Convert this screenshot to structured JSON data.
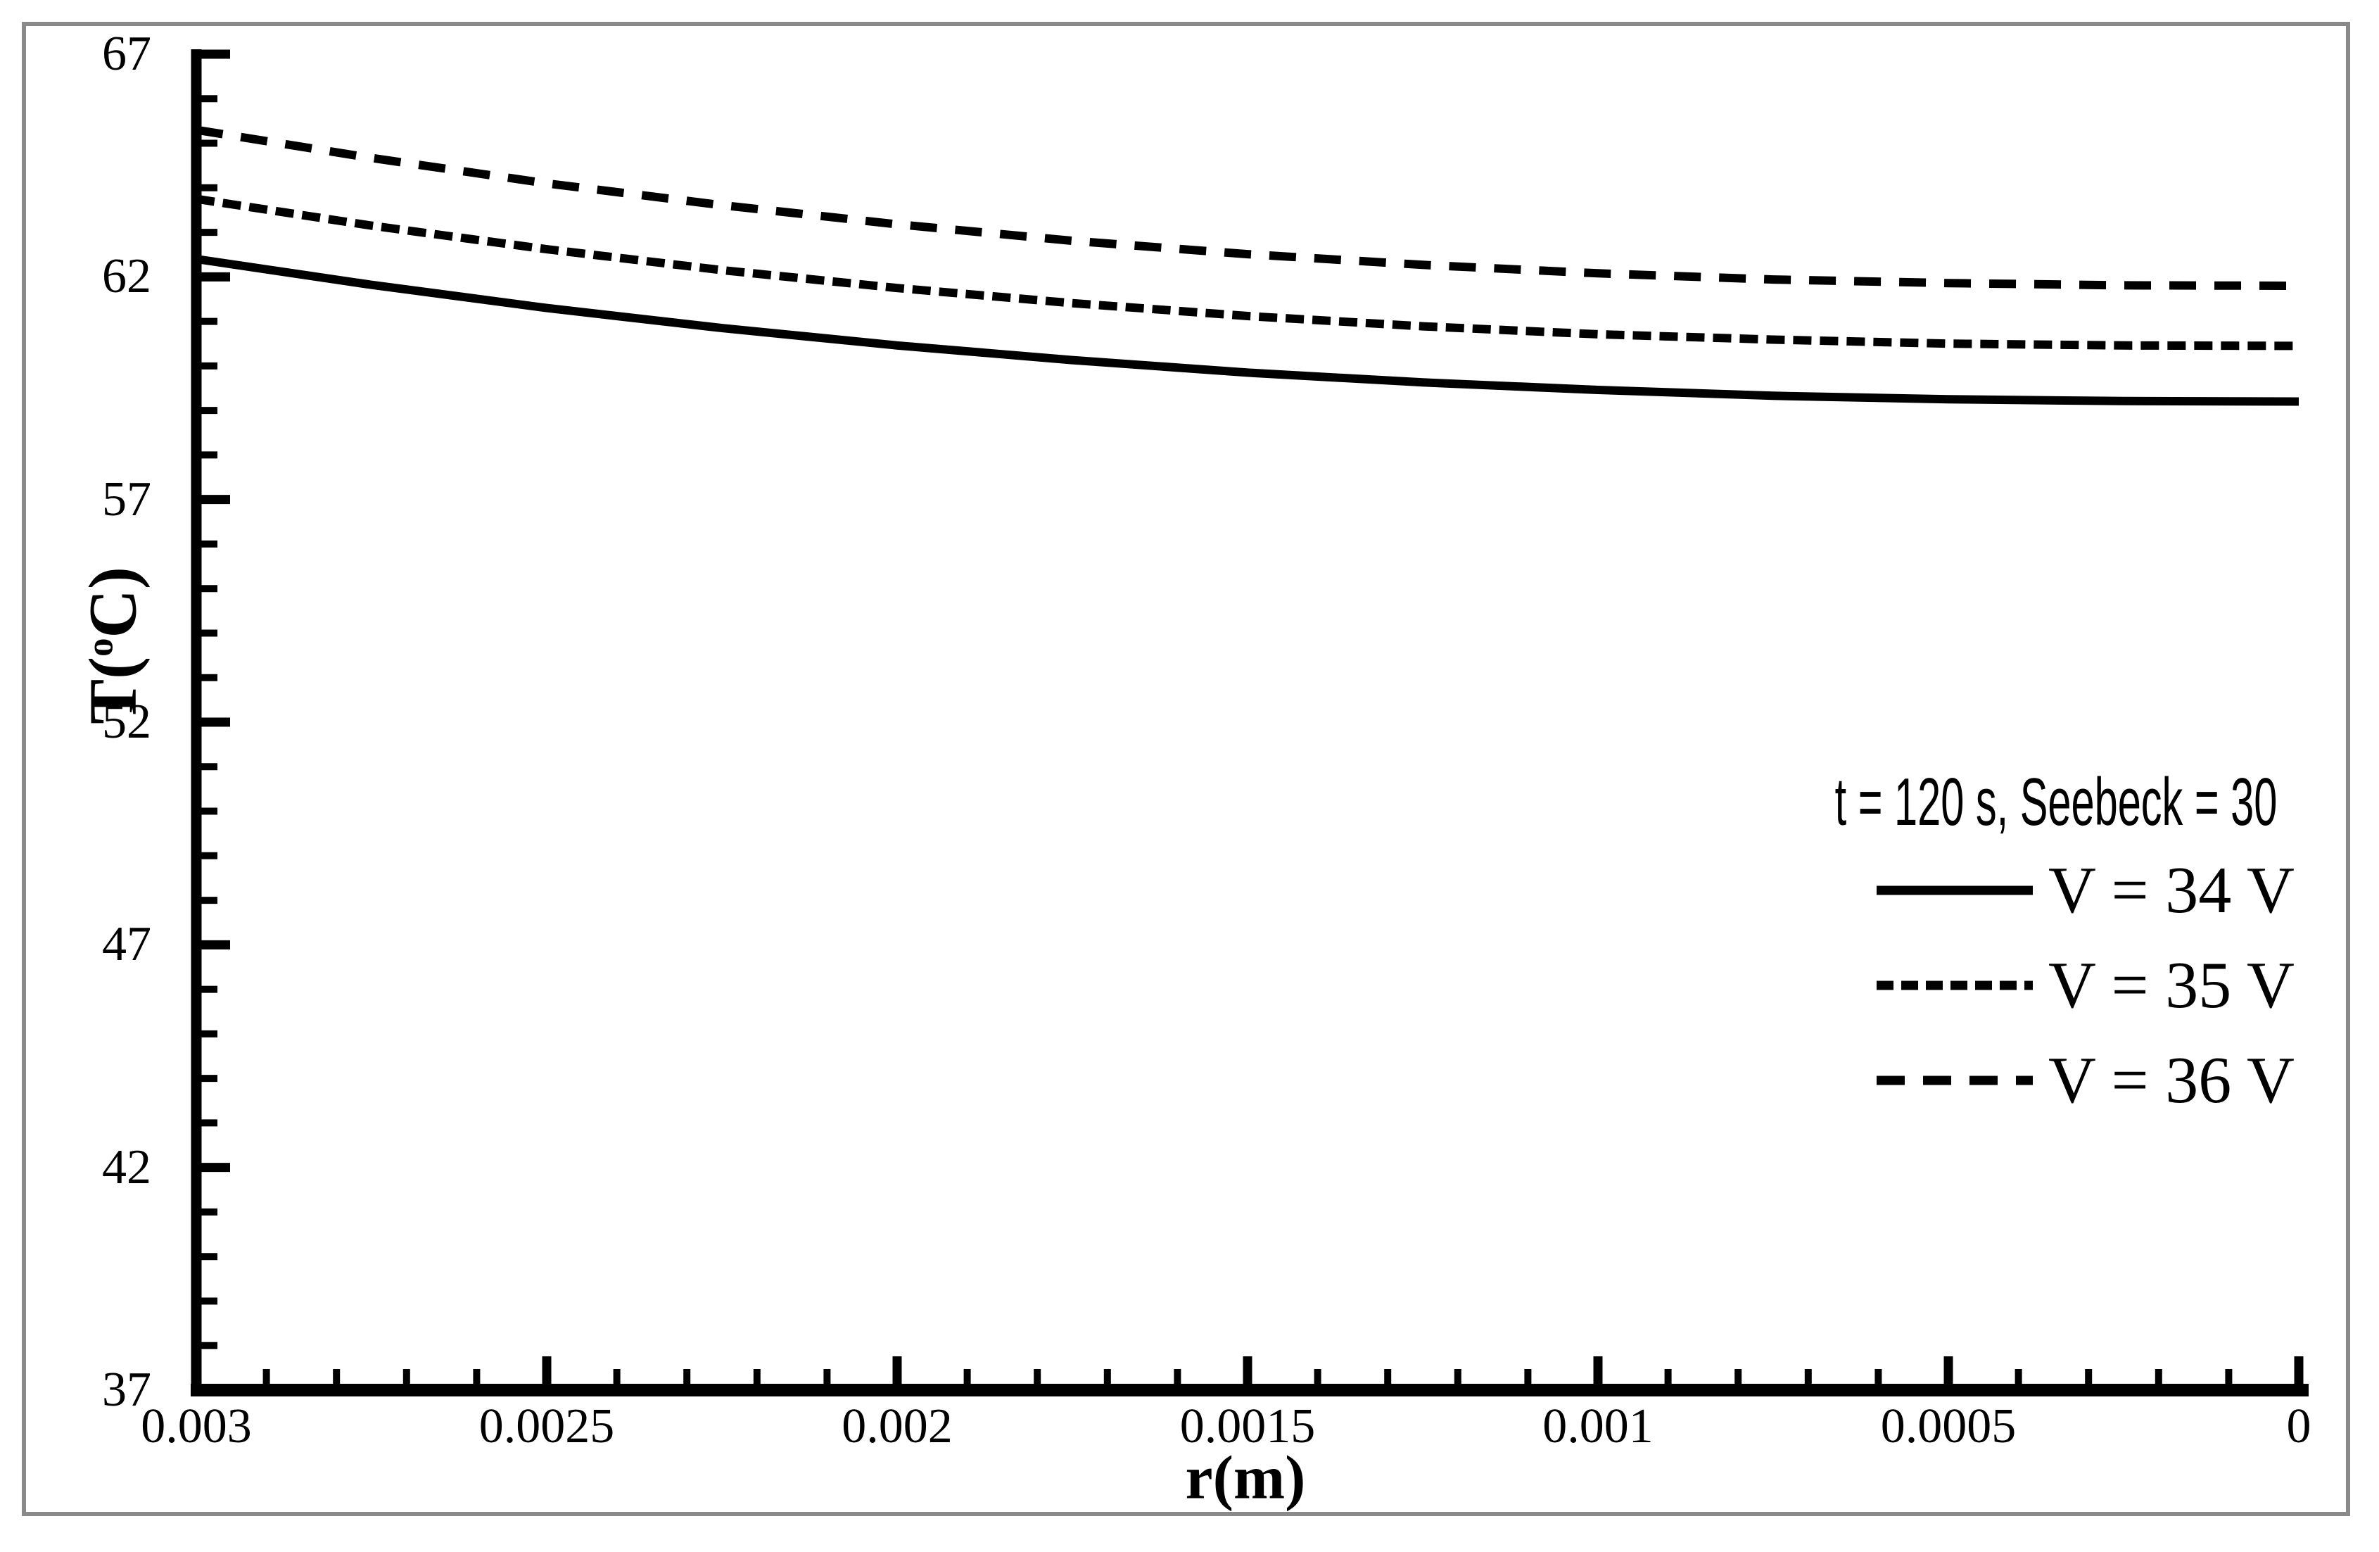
{
  "chart_data": {
    "type": "line",
    "title": "",
    "xlabel": "r(m)",
    "ylabel": "T(°C)",
    "ylabel_parts": {
      "pre": "T(",
      "sup": "o",
      "post": "C)"
    },
    "xlim": [
      0.003,
      0
    ],
    "ylim": [
      37,
      67
    ],
    "x_axis_reversed": true,
    "grid": false,
    "legend_position": "right-middle",
    "legend_title": "t = 120 s, Seebeck = 30",
    "x_ticks_major": [
      0.003,
      0.0025,
      0.002,
      0.0015,
      0.001,
      0.0005,
      0
    ],
    "x_tick_labels": [
      "0.003",
      "0.0025",
      "0.002",
      "0.0015",
      "0.001",
      "0.0005",
      "0"
    ],
    "x_minor_step": 0.0001,
    "y_ticks_major": [
      37,
      42,
      47,
      52,
      57,
      62,
      67
    ],
    "y_tick_labels": [
      "37",
      "42",
      "47",
      "52",
      "57",
      "62",
      "67"
    ],
    "y_minor_step": 1,
    "x": [
      0.003,
      0.00275,
      0.0025,
      0.00225,
      0.002,
      0.00175,
      0.0015,
      0.00125,
      0.001,
      0.00075,
      0.0005,
      0.00025,
      0
    ],
    "series": [
      {
        "name": "V = 34 V",
        "style": "solid",
        "values": [
          62.4,
          61.82,
          61.3,
          60.85,
          60.46,
          60.13,
          59.85,
          59.63,
          59.46,
          59.33,
          59.25,
          59.21,
          59.2
        ]
      },
      {
        "name": "V = 35 V",
        "style": "dash-fine",
        "values": [
          63.75,
          63.15,
          62.62,
          62.15,
          61.75,
          61.41,
          61.12,
          60.89,
          60.71,
          60.59,
          60.5,
          60.46,
          60.45
        ]
      },
      {
        "name": "V = 36 V",
        "style": "dash-coarse",
        "values": [
          65.3,
          64.67,
          64.1,
          63.61,
          63.18,
          62.81,
          62.51,
          62.27,
          62.08,
          61.94,
          61.86,
          61.81,
          61.8
        ]
      }
    ]
  },
  "colors": {
    "line": "#000000",
    "text": "#000000",
    "frame_border": "#8a8a8a",
    "background": "#ffffff"
  }
}
